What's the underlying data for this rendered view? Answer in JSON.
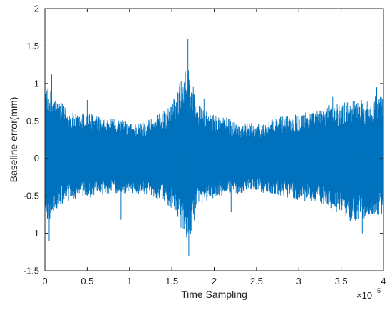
{
  "chart_data": {
    "type": "line",
    "title": "",
    "xlabel": "Time Sampling",
    "ylabel": "Baseline error(mm)",
    "xlim": [
      0,
      4
    ],
    "ylim": [
      -1.5,
      2
    ],
    "x_multiplier_label": "×10",
    "x_multiplier_exponent": "5",
    "xticks": [
      "0",
      "0.5",
      "1",
      "1.5",
      "2",
      "2.5",
      "3",
      "3.5",
      "4"
    ],
    "yticks": [
      "-1.5",
      "-1",
      "-0.5",
      "0",
      "0.5",
      "1",
      "1.5",
      "2"
    ],
    "grid": false,
    "legend": "none",
    "series": [
      {
        "color": "#0072BD",
        "x": [
          0,
          0.05,
          0.1,
          0.2,
          0.3,
          0.4,
          0.5,
          0.6,
          0.7,
          0.8,
          0.9,
          1.0,
          1.1,
          1.2,
          1.3,
          1.4,
          1.5,
          1.55,
          1.6,
          1.65,
          1.7,
          1.75,
          1.8,
          1.9,
          2.0,
          2.1,
          2.2,
          2.3,
          2.4,
          2.5,
          2.6,
          2.7,
          2.8,
          2.9,
          3.0,
          3.1,
          3.2,
          3.3,
          3.4,
          3.5,
          3.6,
          3.7,
          3.8,
          3.9,
          4.0
        ],
        "upper": [
          0.85,
          0.9,
          0.8,
          0.7,
          0.6,
          0.55,
          0.6,
          0.55,
          0.5,
          0.5,
          0.5,
          0.45,
          0.45,
          0.5,
          0.55,
          0.6,
          0.7,
          0.85,
          1.0,
          1.1,
          1.2,
          0.95,
          0.7,
          0.6,
          0.55,
          0.55,
          0.5,
          0.45,
          0.45,
          0.45,
          0.45,
          0.5,
          0.55,
          0.55,
          0.6,
          0.6,
          0.6,
          0.65,
          0.7,
          0.7,
          0.75,
          0.75,
          0.75,
          0.8,
          0.8
        ],
        "lower": [
          -0.75,
          -0.8,
          -0.7,
          -0.6,
          -0.55,
          -0.5,
          -0.5,
          -0.5,
          -0.45,
          -0.45,
          -0.45,
          -0.45,
          -0.45,
          -0.45,
          -0.5,
          -0.55,
          -0.65,
          -0.75,
          -0.9,
          -1.0,
          -1.05,
          -0.85,
          -0.65,
          -0.55,
          -0.5,
          -0.5,
          -0.45,
          -0.45,
          -0.4,
          -0.4,
          -0.45,
          -0.45,
          -0.5,
          -0.5,
          -0.55,
          -0.55,
          -0.55,
          -0.6,
          -0.65,
          -0.75,
          -0.8,
          -0.8,
          -0.75,
          -0.75,
          -0.7
        ],
        "max_point": [
          1.69,
          1.6
        ],
        "min_point": [
          1.7,
          -1.3
        ],
        "peaks_high": [
          [
            0.08,
            1.12
          ],
          [
            1.88,
            0.8
          ],
          [
            3.92,
            0.95
          ],
          [
            3.4,
            0.82
          ],
          [
            0.5,
            0.78
          ]
        ],
        "peaks_low": [
          [
            0.05,
            -1.1
          ],
          [
            3.75,
            -1.0
          ],
          [
            0.9,
            -0.82
          ],
          [
            2.2,
            -0.72
          ]
        ]
      }
    ]
  }
}
